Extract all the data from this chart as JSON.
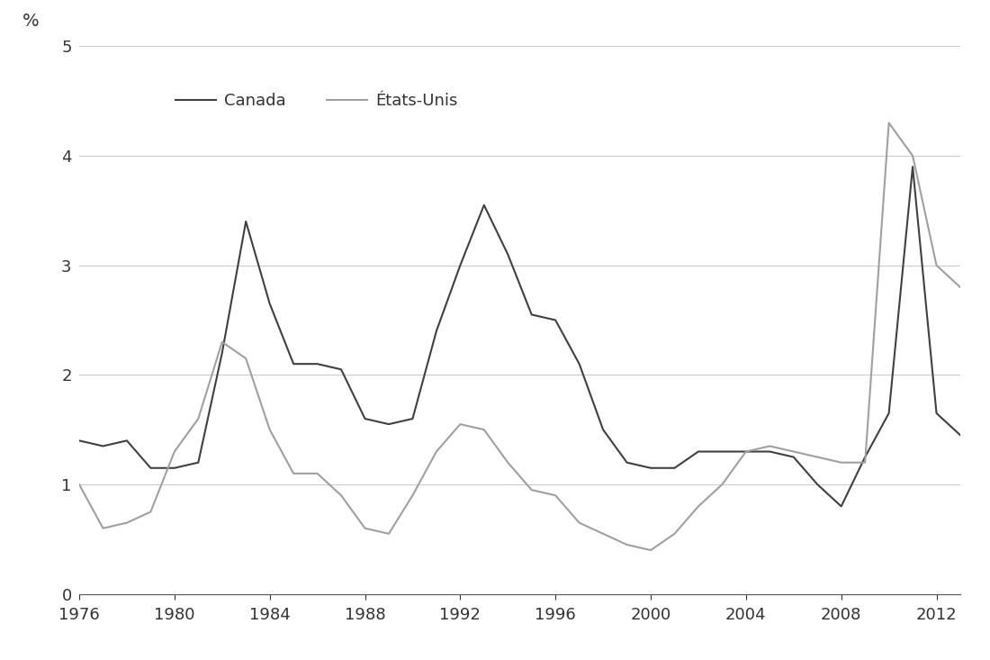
{
  "years_canada": [
    1976,
    1977,
    1978,
    1979,
    1980,
    1981,
    1982,
    1983,
    1984,
    1985,
    1986,
    1987,
    1988,
    1989,
    1990,
    1991,
    1992,
    1993,
    1994,
    1995,
    1996,
    1997,
    1998,
    1999,
    2000,
    2001,
    2002,
    2003,
    2004,
    2005,
    2006,
    2007,
    2008,
    2009,
    2010,
    2011,
    2012,
    2013
  ],
  "canada": [
    1.4,
    1.35,
    1.4,
    1.15,
    1.15,
    1.2,
    2.2,
    3.4,
    2.65,
    2.1,
    2.1,
    2.05,
    1.6,
    1.55,
    1.6,
    2.4,
    3.0,
    3.55,
    3.1,
    2.55,
    2.5,
    2.1,
    1.5,
    1.2,
    1.15,
    1.15,
    1.3,
    1.3,
    1.3,
    1.3,
    1.25,
    1.0,
    0.8,
    1.25,
    1.65,
    3.9,
    1.65,
    1.45
  ],
  "years_us": [
    1976,
    1977,
    1978,
    1979,
    1980,
    1981,
    1982,
    1983,
    1984,
    1985,
    1986,
    1987,
    1988,
    1989,
    1990,
    1991,
    1992,
    1993,
    1994,
    1995,
    1996,
    1997,
    1998,
    1999,
    2000,
    2001,
    2002,
    2003,
    2004,
    2005,
    2006,
    2007,
    2008,
    2009,
    2010,
    2011,
    2012,
    2013
  ],
  "us": [
    1.0,
    0.6,
    0.65,
    0.75,
    1.3,
    1.6,
    2.3,
    2.15,
    1.5,
    1.1,
    1.1,
    0.9,
    0.6,
    0.55,
    0.9,
    1.3,
    1.55,
    1.5,
    1.2,
    0.95,
    0.9,
    0.65,
    0.55,
    0.45,
    0.4,
    0.55,
    0.8,
    1.0,
    1.3,
    1.35,
    1.3,
    1.25,
    1.2,
    1.2,
    4.3,
    4.0,
    3.0,
    2.8
  ],
  "canada_color": "#404040",
  "us_color": "#a0a0a0",
  "legend_canada": "Canada",
  "legend_us": "États-Unis",
  "ylabel": "%",
  "ylim": [
    0,
    5
  ],
  "xlim": [
    1976,
    2013
  ],
  "yticks": [
    0,
    1,
    2,
    3,
    4,
    5
  ],
  "xticks": [
    1976,
    1980,
    1984,
    1988,
    1992,
    1996,
    2000,
    2004,
    2008,
    2012
  ],
  "grid_color": "#cccccc",
  "background_color": "#ffffff",
  "line_width": 1.5,
  "tick_fontsize": 13,
  "legend_fontsize": 13
}
